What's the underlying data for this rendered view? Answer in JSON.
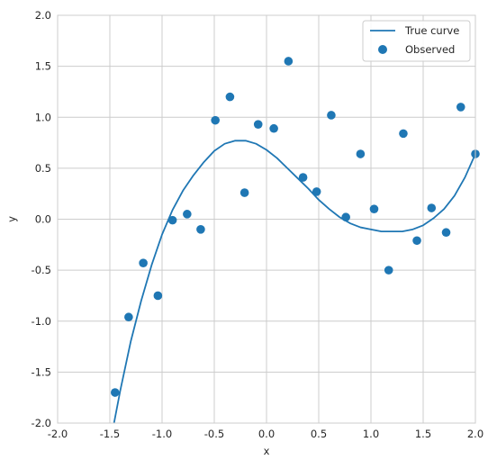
{
  "chart_data": {
    "type": "scatter",
    "xlabel": "x",
    "ylabel": "y",
    "xlim": [
      -2.0,
      2.0
    ],
    "ylim": [
      -2.0,
      2.0
    ],
    "x_ticks": [
      "-2.0",
      "-1.5",
      "-1.0",
      "-0.5",
      "0.0",
      "0.5",
      "1.0",
      "1.5",
      "2.0"
    ],
    "y_ticks": [
      "-2.0",
      "-1.5",
      "-1.0",
      "-0.5",
      "0.0",
      "0.5",
      "1.0",
      "1.5",
      "2.0"
    ],
    "grid": true,
    "legend_position": "top-right",
    "series": [
      {
        "name": "True curve",
        "kind": "line",
        "color": "#1f77b4",
        "x": [
          -1.46,
          -1.4,
          -1.3,
          -1.2,
          -1.1,
          -1.0,
          -0.9,
          -0.8,
          -0.7,
          -0.6,
          -0.5,
          -0.4,
          -0.3,
          -0.2,
          -0.1,
          0.0,
          0.1,
          0.2,
          0.3,
          0.4,
          0.5,
          0.6,
          0.7,
          0.8,
          0.9,
          1.0,
          1.1,
          1.2,
          1.3,
          1.4,
          1.5,
          1.6,
          1.7,
          1.8,
          1.9,
          2.0
        ],
        "y": [
          -2.0,
          -1.68,
          -1.2,
          -0.8,
          -0.45,
          -0.15,
          0.09,
          0.28,
          0.43,
          0.56,
          0.67,
          0.74,
          0.77,
          0.77,
          0.74,
          0.68,
          0.6,
          0.5,
          0.4,
          0.3,
          0.19,
          0.1,
          0.02,
          -0.04,
          -0.08,
          -0.1,
          -0.12,
          -0.12,
          -0.12,
          -0.1,
          -0.06,
          0.01,
          0.1,
          0.23,
          0.41,
          0.64
        ]
      },
      {
        "name": "Observed",
        "kind": "scatter",
        "color": "#1f77b4",
        "x": [
          -1.45,
          -1.32,
          -1.18,
          -1.04,
          -0.9,
          -0.76,
          -0.63,
          -0.49,
          -0.35,
          -0.21,
          -0.08,
          0.07,
          0.21,
          0.35,
          0.48,
          0.62,
          0.76,
          0.9,
          1.03,
          1.17,
          1.31,
          1.44,
          1.58,
          1.72,
          1.86,
          2.0
        ],
        "y": [
          -1.7,
          -0.96,
          -0.43,
          -0.75,
          -0.01,
          0.05,
          -0.1,
          0.97,
          1.2,
          0.26,
          0.93,
          0.89,
          1.55,
          0.41,
          0.27,
          1.02,
          0.02,
          0.64,
          0.1,
          -0.5,
          0.84,
          -0.21,
          0.11,
          -0.13,
          1.1,
          0.64
        ]
      }
    ]
  }
}
